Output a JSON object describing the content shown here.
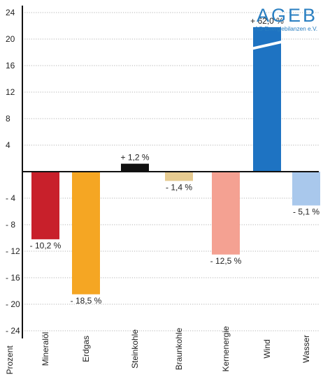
{
  "logo": {
    "name": "AGEB",
    "subtitle": "AG Energiebilanzen e.V."
  },
  "chart_data": {
    "type": "bar",
    "ylabel": "Prozent",
    "ylim": [
      -28,
      28
    ],
    "yticks": [
      24,
      20,
      16,
      12,
      8,
      4,
      -4,
      -8,
      -12,
      -16,
      -20,
      -24
    ],
    "ytick_labels": [
      "24",
      "20",
      "16",
      "12",
      "8",
      "4",
      "- 4",
      "- 8",
      "- 12",
      "- 16",
      "- 20",
      "- 24"
    ],
    "categories": [
      "Mineralöl",
      "Erdgas",
      "Steinkohle",
      "Braunkohle",
      "Kernenergie",
      "Wind",
      "Wasser"
    ],
    "values": [
      -10.2,
      -18.5,
      1.2,
      -1.4,
      -12.5,
      62.0,
      -5.1
    ],
    "value_labels": [
      "- 10,2 %",
      "- 18,5 %",
      "+ 1,2 %",
      "- 1,4 %",
      "- 12,5 %",
      "+ 62,0 %",
      "- 5,1 %"
    ],
    "colors": [
      "#c8202b",
      "#f5a623",
      "#111111",
      "#e6cb91",
      "#f4a192",
      "#1e73c2",
      "#a9c8ec"
    ],
    "axis_break": {
      "category": "Wind",
      "shown_to": 21.8
    },
    "grid": "dotted horizontal"
  }
}
